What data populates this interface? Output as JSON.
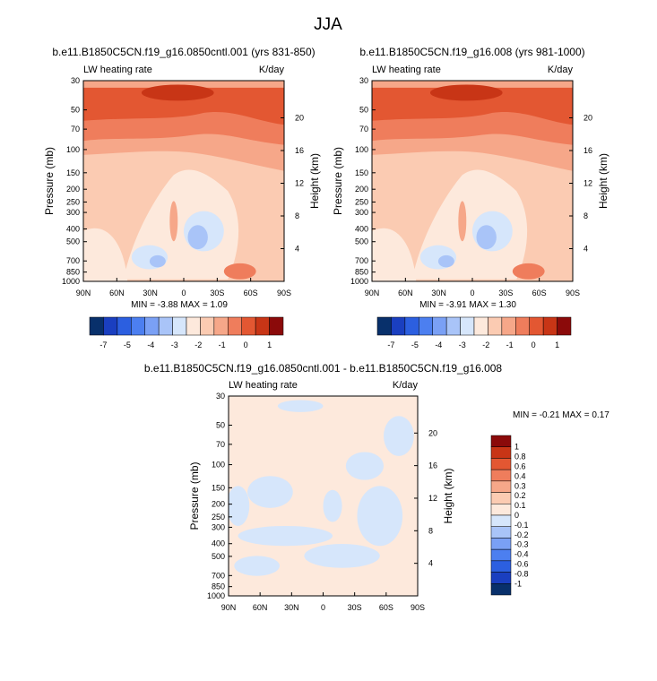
{
  "figure": {
    "title": "JJA"
  },
  "chart_data": [
    {
      "type": "contour",
      "title": "b.e11.B1850C5CN.f19_g16.0850cntl.001 (yrs 831-850)",
      "left_string": "LW heating rate",
      "right_string": "K/day",
      "ylabel": "Pressure (mb)",
      "ylabel_right": "Height (km)",
      "x_ticks": [
        "90N",
        "60N",
        "30N",
        "0",
        "30S",
        "60S",
        "90S"
      ],
      "y_ticks": [
        "30",
        "50",
        "70",
        "100",
        "150",
        "200",
        "250",
        "300",
        "400",
        "500",
        "700",
        "850",
        "1000"
      ],
      "height_ticks": [
        "20",
        "16",
        "12",
        "8",
        "4"
      ],
      "min_max_text": "MIN = -3.88  MAX =  1.09",
      "colorbar_labels": [
        "-7",
        "-5",
        "-4",
        "-3",
        "-2",
        "-1",
        "0",
        "1"
      ],
      "colors": [
        "#08306b",
        "#1a3fc0",
        "#2c5fe0",
        "#4c7ff0",
        "#7aa0f5",
        "#a9c4f8",
        "#d6e6fb",
        "#fde9dc",
        "#fbcbb2",
        "#f6a789",
        "#ef7d5c",
        "#e35732",
        "#c83516",
        "#8b0a0a"
      ]
    },
    {
      "type": "contour",
      "title": "b.e11.B1850C5CN.f19_g16.008 (yrs 981-1000)",
      "left_string": "LW heating rate",
      "right_string": "K/day",
      "ylabel": "Pressure (mb)",
      "ylabel_right": "Height (km)",
      "x_ticks": [
        "90N",
        "60N",
        "30N",
        "0",
        "30S",
        "60S",
        "90S"
      ],
      "y_ticks": [
        "30",
        "50",
        "70",
        "100",
        "150",
        "200",
        "250",
        "300",
        "400",
        "500",
        "700",
        "850",
        "1000"
      ],
      "height_ticks": [
        "20",
        "16",
        "12",
        "8",
        "4"
      ],
      "min_max_text": "MIN = -3.91  MAX =  1.30",
      "colorbar_labels": [
        "-7",
        "-5",
        "-4",
        "-3",
        "-2",
        "-1",
        "0",
        "1"
      ],
      "colors": [
        "#08306b",
        "#1a3fc0",
        "#2c5fe0",
        "#4c7ff0",
        "#7aa0f5",
        "#a9c4f8",
        "#d6e6fb",
        "#fde9dc",
        "#fbcbb2",
        "#f6a789",
        "#ef7d5c",
        "#e35732",
        "#c83516",
        "#8b0a0a"
      ]
    },
    {
      "type": "contour",
      "title": "b.e11.B1850C5CN.f19_g16.0850cntl.001 - b.e11.B1850C5CN.f19_g16.008",
      "left_string": "LW heating rate",
      "right_string": "K/day",
      "ylabel": "Pressure (mb)",
      "ylabel_right": "Height (km)",
      "x_ticks": [
        "90N",
        "60N",
        "30N",
        "0",
        "30S",
        "60S",
        "90S"
      ],
      "y_ticks": [
        "30",
        "50",
        "70",
        "100",
        "150",
        "200",
        "250",
        "300",
        "400",
        "500",
        "700",
        "850",
        "1000"
      ],
      "height_ticks": [
        "20",
        "16",
        "12",
        "8",
        "4"
      ],
      "min_max_text": "MIN =  -0.21  MAX =  0.17",
      "colorbar_labels": [
        "1",
        "0.8",
        "0.6",
        "0.4",
        "0.3",
        "0.2",
        "0.1",
        "0",
        "-0.1",
        "-0.2",
        "-0.3",
        "-0.4",
        "-0.6",
        "-0.8",
        "-1"
      ],
      "colors": [
        "#8b0a0a",
        "#c83516",
        "#e35732",
        "#ef7d5c",
        "#f6a789",
        "#fbcbb2",
        "#fde9dc",
        "#d6e6fb",
        "#a9c4f8",
        "#7aa0f5",
        "#4c7ff0",
        "#2c5fe0",
        "#1a3fc0",
        "#08306b"
      ]
    }
  ]
}
